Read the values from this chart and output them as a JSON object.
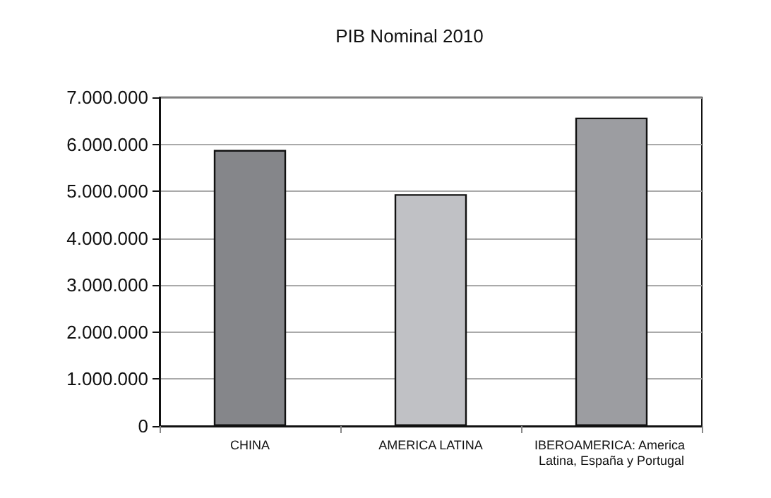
{
  "chart_data": {
    "type": "bar",
    "title": "PIB Nominal 2010",
    "categories": [
      "CHINA",
      "AMERICA LATINA",
      "IBEROAMERICA: America Latina, España y Portugal"
    ],
    "values": [
      5880000,
      4940000,
      6570000
    ],
    "colors": [
      "#85868a",
      "#c0c1c5",
      "#9c9da1"
    ],
    "ylim": [
      0,
      7000000
    ],
    "yticks": [
      0,
      {
        "value": 1000000,
        "label": "1.000.000"
      },
      {
        "value": 2000000,
        "label": "2.000.000"
      },
      {
        "value": 3000000,
        "label": "3.000.000"
      },
      {
        "value": 4000000,
        "label": "4.000.000"
      },
      {
        "value": 5000000,
        "label": "5.000.000"
      },
      {
        "value": 6000000,
        "label": "6.000.000"
      },
      {
        "value": 7000000,
        "label": "7.000.000"
      }
    ],
    "grid": "y"
  }
}
